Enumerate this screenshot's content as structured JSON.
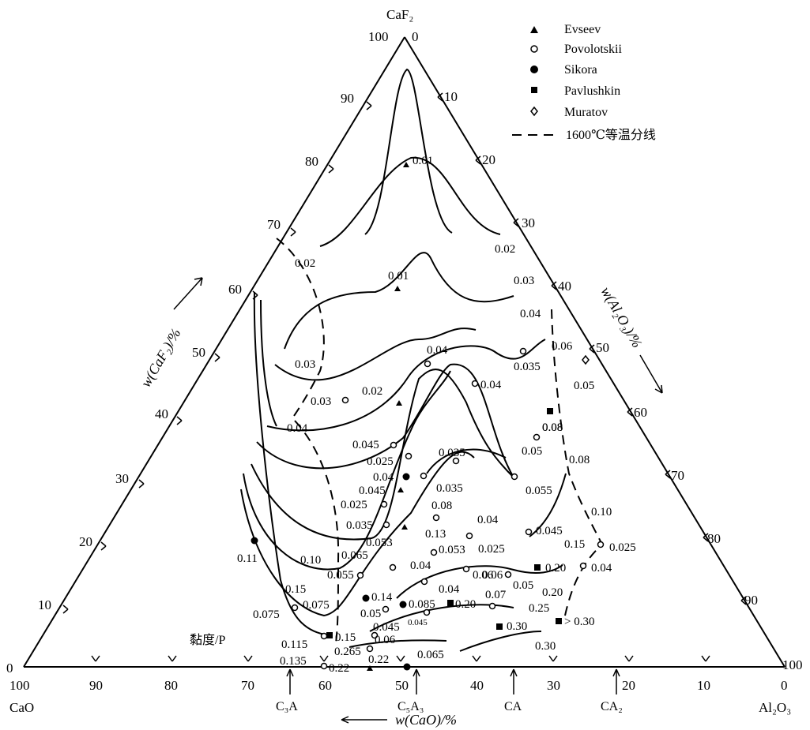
{
  "vertices": {
    "top": "CaF₂",
    "left": "CaO",
    "right": "Al₂O₃"
  },
  "axis_titles": {
    "caf2": "w(CaF₂)/%",
    "al2o3": "w(Al₂O₃)/%",
    "cao": "w(CaO)/%"
  },
  "viscosity_label": "黏度/P",
  "legend": {
    "items": [
      {
        "name": "Evseev",
        "marker": "triangle"
      },
      {
        "name": "Povolotskii",
        "marker": "open-circle"
      },
      {
        "name": "Sikora",
        "marker": "filled-circle"
      },
      {
        "name": "Pavlushkin",
        "marker": "filled-square"
      },
      {
        "name": "Muratov",
        "marker": "open-diamond"
      }
    ],
    "dashed_label": "1600℃等温分线"
  },
  "ticks": {
    "left": [
      "0",
      "10",
      "20",
      "30",
      "40",
      "50",
      "60",
      "70",
      "80",
      "90",
      "100"
    ],
    "right": [
      "0",
      "10",
      "20",
      "30",
      "40",
      "50",
      "60",
      "70",
      "80",
      "90",
      "100"
    ],
    "bottom": [
      "100",
      "90",
      "80",
      "70",
      "60",
      "50",
      "40",
      "30",
      "20",
      "10",
      "0"
    ]
  },
  "compound_markers": [
    {
      "label": "C₃A",
      "cao_pct": 62.3
    },
    {
      "label": "C₅A₃",
      "cao_pct": 47.8
    },
    {
      "label": "CA",
      "cao_pct": 35.4
    },
    {
      "label": "CA₂",
      "cao_pct": 21.6
    }
  ],
  "chart_data": {
    "type": "ternary",
    "components": [
      "CaO",
      "Al2O3",
      "CaF2"
    ],
    "units": "mass %",
    "iso_viscosity_values_P": [
      "0.01",
      "0.02",
      "0.03",
      "0.04",
      "0.06",
      "0.08",
      "0.10",
      "0.15",
      "0.20",
      "0.25",
      "0.30"
    ],
    "data_labels": [
      "0.01",
      "0.01",
      "0.02",
      "0.02",
      "0.02",
      "0.03",
      "0.03",
      "0.03",
      "0.04",
      "0.04",
      "0.04",
      "0.04",
      "0.06",
      "0.035",
      "0.05",
      "0.045",
      "0.025",
      "0.04",
      "0.045",
      "0.025",
      "0.035",
      "0.053",
      "0.065",
      "0.08",
      "0.10",
      "0.11",
      "0.055",
      "0.15",
      "0.075",
      "0.075",
      "0.035",
      "0.035",
      "0.08",
      "0.04",
      "0.13",
      "0.053",
      "0.025",
      "0.04",
      "0.045",
      "0.055",
      "0.05",
      "0.08",
      "0.08",
      "0.06",
      "0.10",
      "0.15",
      "0.025",
      "0.04",
      "0.20",
      "0.06",
      "0.05",
      "0.20",
      "0.04",
      "0.07",
      "0.25",
      "0.14",
      "0.085",
      "0.20",
      "0.05",
      "0.045",
      "0.045",
      "0.30",
      "> 0.30",
      "0.30",
      "0.115",
      "0.15",
      "0.06",
      "0.135",
      "0.265",
      "0.22",
      "0.22",
      "0.065"
    ]
  }
}
